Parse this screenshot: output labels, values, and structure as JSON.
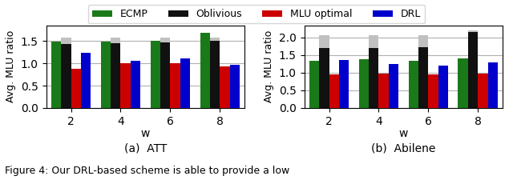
{
  "chart_data": [
    {
      "type": "bar",
      "subtitle": "(a)  ATT",
      "xlabel": "w",
      "ylabel": "Avg. MLU ratio",
      "categories": [
        "2",
        "4",
        "6",
        "8"
      ],
      "series": [
        {
          "name": "ECMP",
          "color": "#1a7a1a",
          "values": [
            1.48,
            1.48,
            1.5,
            1.68
          ]
        },
        {
          "name": "Oblivious",
          "color": "#111111",
          "values": [
            1.43,
            1.45,
            1.47,
            1.5
          ]
        },
        {
          "color": "#c0c0c0",
          "stacked": true,
          "values": [
            0.14,
            0.12,
            0.1,
            0.07
          ]
        },
        {
          "name": "MLU optimal",
          "color": "#cc0000",
          "values": [
            0.88,
            1.0,
            1.0,
            0.93
          ]
        },
        {
          "name": "DRL",
          "color": "#0000cc",
          "values": [
            1.23,
            1.06,
            1.1,
            0.97
          ]
        }
      ],
      "ylim": [
        0.0,
        1.85
      ],
      "yticks": [
        {
          "value": 0.0,
          "label": "0.0"
        },
        0.5,
        {
          "value": 1.0,
          "label": "1.0"
        },
        1.5
      ],
      "grid": true,
      "legend": "upper center"
    },
    {
      "type": "bar",
      "subtitle": "(b)  Abilene",
      "xlabel": "w",
      "ylabel": "Avg. MLU ratio",
      "categories": [
        "2",
        "4",
        "6",
        "8"
      ],
      "series": [
        {
          "name": "ECMP",
          "color": "#1a7a1a",
          "values": [
            1.35,
            1.38,
            1.35,
            1.4
          ]
        },
        {
          "name": "Oblivious",
          "color": "#111111",
          "values": [
            1.7,
            1.7,
            1.72,
            2.15
          ]
        },
        {
          "color": "#c0c0c0",
          "stacked": true,
          "values": [
            0.37,
            0.37,
            0.35,
            0.05
          ]
        },
        {
          "name": "MLU optimal",
          "color": "#cc0000",
          "values": [
            0.96,
            0.97,
            0.96,
            0.97
          ]
        },
        {
          "name": "DRL",
          "color": "#0000cc",
          "values": [
            1.37,
            1.26,
            1.21,
            1.3
          ]
        }
      ],
      "ylim": [
        0.0,
        2.35
      ],
      "yticks": [
        {
          "value": 0.0,
          "label": "0.0"
        },
        0.5,
        {
          "value": 1.0,
          "label": "1.0"
        },
        1.5,
        {
          "value": 2.0,
          "label": "2.0"
        }
      ],
      "grid": true,
      "legend": "upper center"
    }
  ],
  "caption": "Figure 4: Our DRL-based scheme is able to provide a low"
}
